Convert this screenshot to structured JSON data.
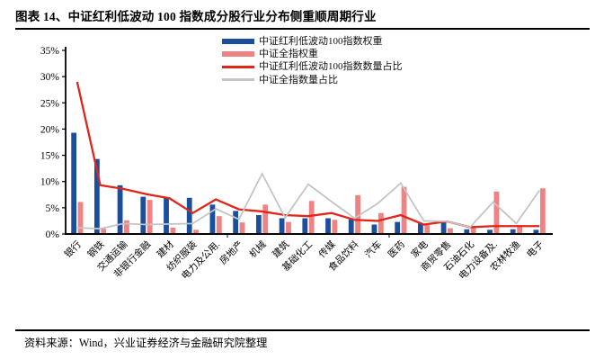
{
  "title": "图表 14、中证红利低波动 100 指数成分股行业分布侧重顺周期行业",
  "source": "资料来源：Wind，兴业证券经济与金融研究院整理",
  "colors": {
    "bar_blue": "#1B4F9E",
    "bar_pink": "#EF8283",
    "line_red": "#E02519",
    "line_gray": "#C4C4C4",
    "axis": "#000000",
    "text": "#000000"
  },
  "legend": {
    "items": [
      {
        "label": "中证红利低波动100指数权重",
        "swatch": "bar",
        "color": "#1B4F9E"
      },
      {
        "label": "中证全指权重",
        "swatch": "bar",
        "color": "#EF8283"
      },
      {
        "label": "中证红利低波动100指数数量占比",
        "swatch": "line",
        "color": "#E02519"
      },
      {
        "label": "中证全指数量占比",
        "swatch": "line",
        "color": "#C4C4C4"
      }
    ]
  },
  "chart_data": {
    "type": "bar",
    "subtype": "grouped-bars-with-overlaid-lines",
    "title": "中证红利低波动100指数成分股行业分布侧重顺周期行业",
    "xlabel": "",
    "ylabel": "",
    "ylim": [
      0,
      35
    ],
    "ytick_step": 5,
    "yticks": [
      "0%",
      "5%",
      "10%",
      "15%",
      "20%",
      "25%",
      "30%",
      "35%"
    ],
    "grid": false,
    "legend_position": "top-center",
    "categories": [
      "银行",
      "钢铁",
      "交通运输",
      "非银行金融",
      "建材",
      "纺织服装",
      "电力及公用.",
      "房地产",
      "机械",
      "建筑",
      "基础化工",
      "传媒",
      "食品饮料",
      "汽车",
      "医药",
      "家电",
      "商贸零售",
      "石油石化",
      "电力设备及.",
      "农林牧渔",
      "电子"
    ],
    "series": [
      {
        "name": "中证红利低波动100指数权重",
        "type": "bar",
        "color": "#1B4F9E",
        "values": [
          19.3,
          14.3,
          9.3,
          7.1,
          6.9,
          6.9,
          5.6,
          4.4,
          3.6,
          3.0,
          3.0,
          3.0,
          2.8,
          1.8,
          2.3,
          2.0,
          2.2,
          0.9,
          0.8,
          0.9,
          0.8
        ]
      },
      {
        "name": "中证全指权重",
        "type": "bar",
        "color": "#EF8283",
        "values": [
          6.1,
          1.0,
          2.6,
          6.5,
          1.2,
          0.8,
          3.4,
          2.2,
          5.6,
          2.3,
          6.3,
          2.7,
          7.4,
          4.0,
          9.0,
          1.7,
          1.1,
          1.3,
          8.1,
          1.7,
          8.7
        ]
      },
      {
        "name": "中证红利低波动100指数数量占比",
        "type": "line",
        "color": "#E02519",
        "values": [
          29.0,
          9.3,
          8.6,
          7.6,
          6.8,
          4.0,
          6.6,
          4.7,
          4.3,
          3.6,
          3.4,
          4.0,
          2.7,
          2.5,
          3.6,
          1.8,
          2.4,
          1.3,
          1.5,
          1.5,
          1.5
        ]
      },
      {
        "name": "中证全指数量占比",
        "type": "line",
        "color": "#C4C4C4",
        "values": [
          1.2,
          1.0,
          2.0,
          1.8,
          1.9,
          2.0,
          4.8,
          2.8,
          11.5,
          3.1,
          9.5,
          6.2,
          3.0,
          5.8,
          9.7,
          2.5,
          2.4,
          1.3,
          6.1,
          2.0,
          8.3
        ]
      }
    ]
  },
  "layout_note": "y axis 0%-35% at left, 21 industry categories rotated 45 degrees on x axis"
}
